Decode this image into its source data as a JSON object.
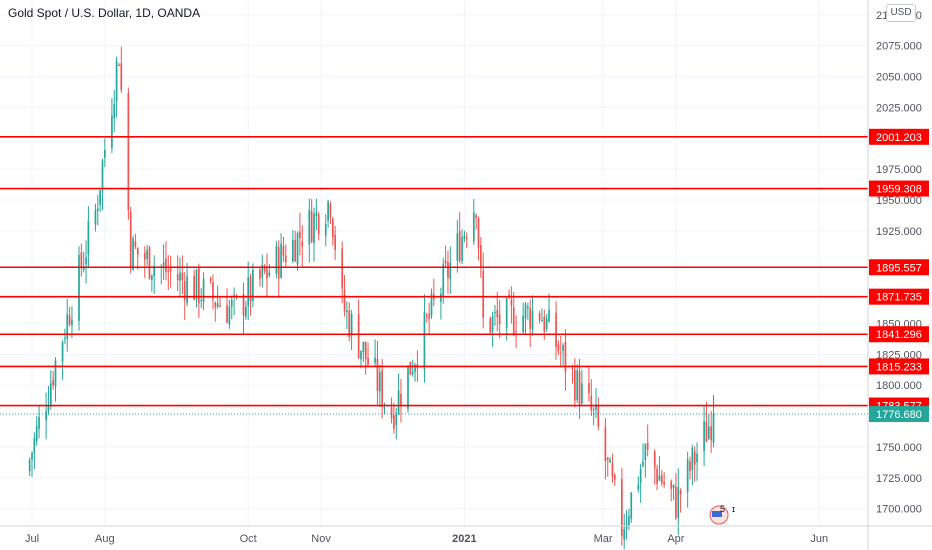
{
  "header": {
    "title": "Gold Spot / U.S. Dollar, 1D, OANDA",
    "currency": "USD"
  },
  "colors": {
    "up": "#26a69a",
    "down": "#ef5350",
    "level_line": "#ff0000",
    "grid": "#f0f3fa",
    "axis_text": "#50535e",
    "current_price": "#26a69a"
  },
  "events_badge": {
    "count": "5"
  },
  "chart_data": {
    "type": "candlestick",
    "title": "Gold Spot / U.S. Dollar, 1D, OANDA",
    "currency": "USD",
    "ylim": [
      1686,
      2112
    ],
    "y_ticks": [
      "2100.000",
      "2075.000",
      "2050.000",
      "2025.000",
      "1975.000",
      "1950.000",
      "1925.000",
      "1850.000",
      "1825.000",
      "1800.000",
      "1750.000",
      "1725.000",
      "1700.000"
    ],
    "x_ticks": [
      {
        "label": "Jul",
        "day": 0
      },
      {
        "label": "Aug",
        "day": 31
      },
      {
        "label": "Oct",
        "day": 92
      },
      {
        "label": "Nov",
        "day": 123
      },
      {
        "label": "2021",
        "day": 184
      },
      {
        "label": "Mar",
        "day": 243
      },
      {
        "label": "Apr",
        "day": 274
      },
      {
        "label": "Jun",
        "day": 335
      }
    ],
    "key_points": [
      {
        "date": "2020-06-29",
        "close": 1740
      },
      {
        "date": "2020-07-27",
        "close": 1940
      },
      {
        "date": "2020-08-06",
        "close": 2070
      },
      {
        "date": "2020-08-11",
        "close": 1910
      },
      {
        "date": "2020-09-24",
        "close": 1860
      },
      {
        "date": "2020-11-04",
        "close": 1950
      },
      {
        "date": "2020-11-09",
        "close": 1865
      },
      {
        "date": "2020-11-30",
        "close": 1777
      },
      {
        "date": "2021-01-05",
        "close": 1950
      },
      {
        "date": "2021-01-08",
        "close": 1850
      },
      {
        "date": "2021-02-01",
        "close": 1860
      },
      {
        "date": "2021-02-25",
        "close": 1770
      },
      {
        "date": "2021-03-08",
        "close": 1685
      },
      {
        "date": "2021-03-18",
        "close": 1745
      },
      {
        "date": "2021-03-31",
        "close": 1705
      },
      {
        "date": "2021-04-16",
        "close": 1776.68
      }
    ],
    "levels": [
      {
        "value": 2001.203,
        "label": "2001.203"
      },
      {
        "value": 1959.308,
        "label": "1959.308"
      },
      {
        "value": 1895.557,
        "label": "1895.557"
      },
      {
        "value": 1871.735,
        "label": "1871.735"
      },
      {
        "value": 1841.296,
        "label": "1841.296"
      },
      {
        "value": 1815.233,
        "label": "1815.233"
      },
      {
        "value": 1783.577,
        "label": "1783.577"
      }
    ],
    "last_price": {
      "value": 1776.68,
      "label": "1776.680"
    }
  }
}
